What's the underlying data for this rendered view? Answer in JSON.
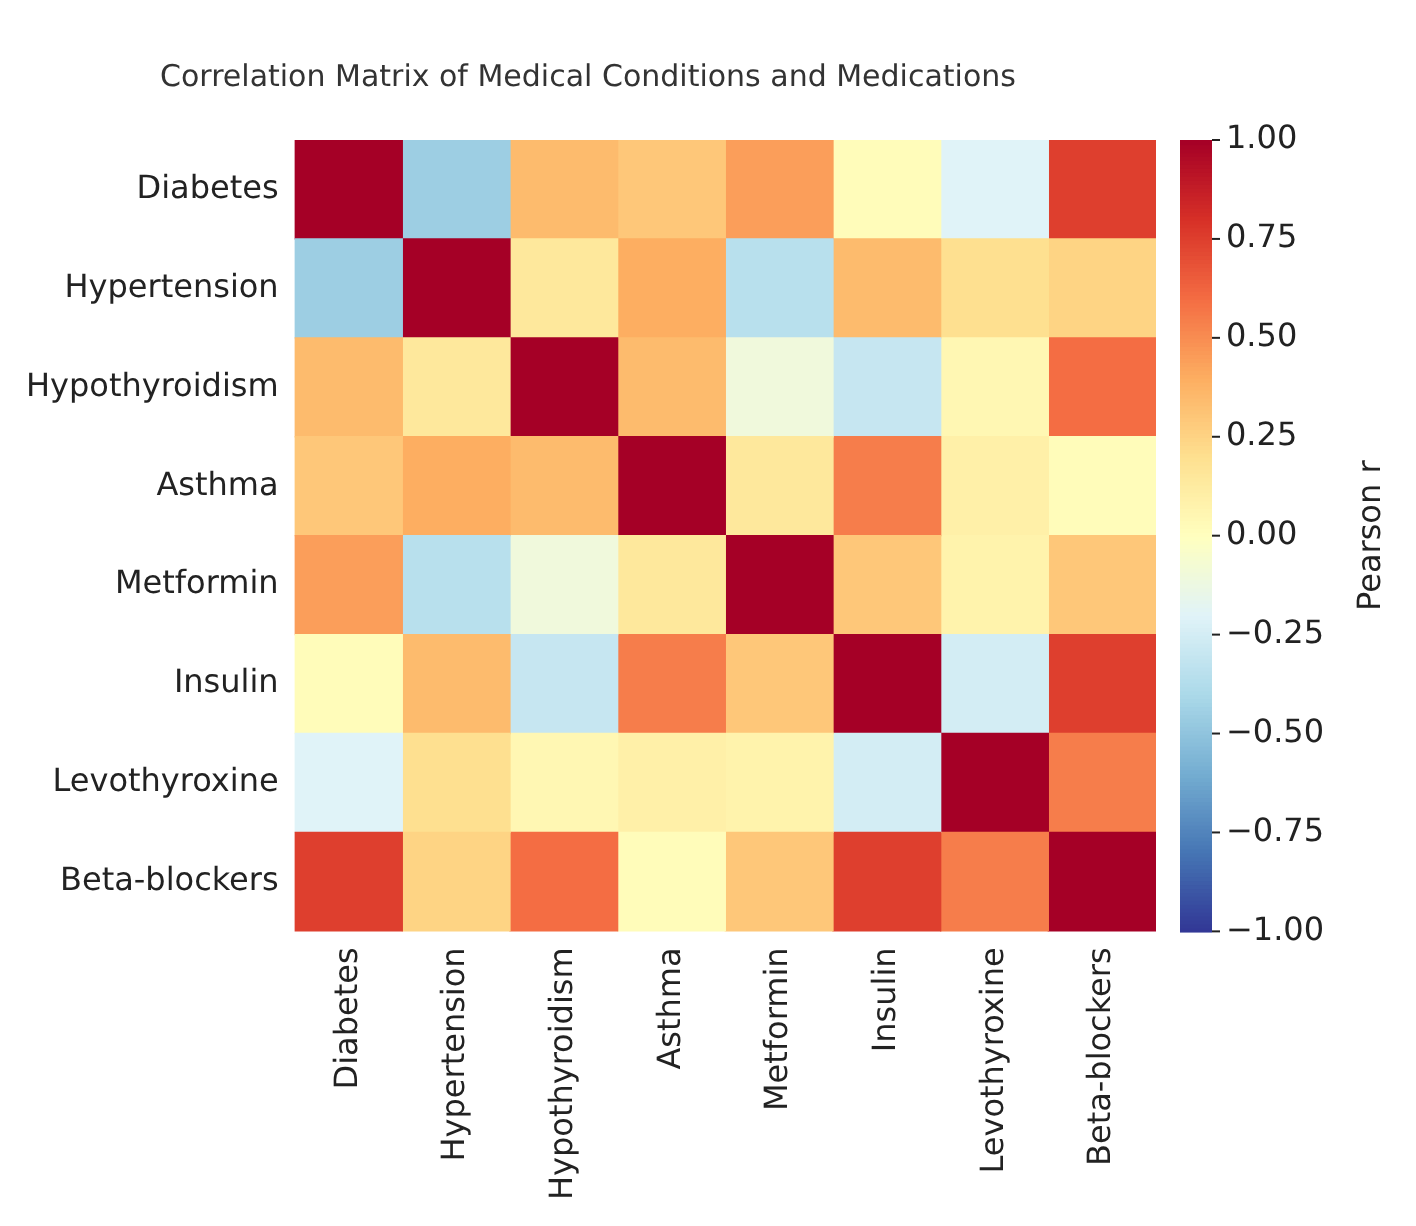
{
  "chart_data": {
    "type": "heatmap",
    "title": "Correlation Matrix of Medical Conditions and Medications",
    "clabel": "Pearson r",
    "categories": [
      "Diabetes",
      "Hypertension",
      "Hypothyroidism",
      "Asthma",
      "Metformin",
      "Insulin",
      "Levothyroxine",
      "Beta-blockers"
    ],
    "y_categories": [
      "Diabetes",
      "Hypertension",
      "Hypothyroidism",
      "Asthma",
      "Metformin",
      "Insulin",
      "Levothyroxine",
      "Beta-blockers"
    ],
    "cells": [
      [
        1,
        -0.45,
        0.35,
        0.3,
        0.45,
        0.02,
        -0.2,
        0.75
      ],
      [
        -0.45,
        1,
        0.15,
        0.4,
        -0.35,
        0.35,
        0.2,
        0.25
      ],
      [
        0.35,
        0.15,
        1,
        0.35,
        -0.1,
        -0.3,
        0.05,
        0.6
      ],
      [
        0.3,
        0.4,
        0.35,
        1,
        0.15,
        0.55,
        0.1,
        0.02
      ],
      [
        0.45,
        -0.35,
        -0.1,
        0.15,
        1,
        0.3,
        0.08,
        0.3
      ],
      [
        0.02,
        0.35,
        -0.3,
        0.55,
        0.3,
        1,
        -0.25,
        0.75
      ],
      [
        -0.2,
        0.2,
        0.05,
        0.1,
        0.08,
        -0.25,
        1,
        0.55
      ],
      [
        0.75,
        0.25,
        0.6,
        0.02,
        0.3,
        0.75,
        0.55,
        1
      ]
    ],
    "clim": [
      -1,
      1
    ],
    "cticks": [
      {
        "value": -1,
        "label": "−1.00"
      },
      {
        "value": -0.75,
        "label": "−0.75"
      },
      {
        "value": -0.5,
        "label": "−0.50"
      },
      {
        "value": -0.25,
        "label": "−0.25"
      },
      {
        "value": 0,
        "label": "0.00"
      },
      {
        "value": 0.25,
        "label": "0.25"
      },
      {
        "value": 0.5,
        "label": "0.50"
      },
      {
        "value": 0.75,
        "label": "0.75"
      },
      {
        "value": 1,
        "label": "1.00"
      }
    ]
  }
}
